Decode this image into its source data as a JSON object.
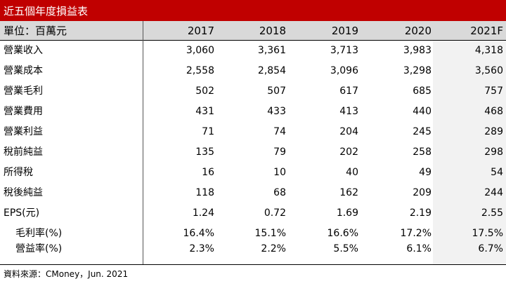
{
  "title": "近五個年度損益表",
  "header": {
    "unit_label": "單位：百萬元",
    "years": [
      "2017",
      "2018",
      "2019",
      "2020",
      "2021F"
    ]
  },
  "rows": [
    {
      "label": "營業收入",
      "values": [
        "3,060",
        "3,361",
        "3,713",
        "3,983",
        "4,318"
      ]
    },
    {
      "label": "營業成本",
      "values": [
        "2,558",
        "2,854",
        "3,096",
        "3,298",
        "3,560"
      ]
    },
    {
      "label": "營業毛利",
      "values": [
        "502",
        "507",
        "617",
        "685",
        "757"
      ]
    },
    {
      "label": "營業費用",
      "values": [
        "431",
        "433",
        "413",
        "440",
        "468"
      ]
    },
    {
      "label": "營業利益",
      "values": [
        "71",
        "74",
        "204",
        "245",
        "289"
      ]
    },
    {
      "label": "稅前純益",
      "values": [
        "135",
        "79",
        "202",
        "258",
        "298"
      ]
    },
    {
      "label": "所得稅",
      "values": [
        "16",
        "10",
        "40",
        "49",
        "54"
      ]
    },
    {
      "label": "稅後純益",
      "values": [
        "118",
        "68",
        "162",
        "209",
        "244"
      ]
    },
    {
      "label": "EPS(元)",
      "values": [
        "1.24",
        "0.72",
        "1.69",
        "2.19",
        "2.55"
      ]
    }
  ],
  "ratio_rows": [
    {
      "label": "毛利率(%)",
      "values": [
        "16.4%",
        "15.1%",
        "16.6%",
        "17.2%",
        "17.5%"
      ]
    },
    {
      "label": "營益率(%)",
      "values": [
        "2.3%",
        "2.2%",
        "5.5%",
        "6.1%",
        "6.7%"
      ]
    }
  ],
  "source": "資料來源：CMoney，Jun. 2021",
  "colors": {
    "title_bg": "#c00000",
    "header_bg": "#d9d9d9",
    "forecast_bg": "#f2f2f2"
  }
}
